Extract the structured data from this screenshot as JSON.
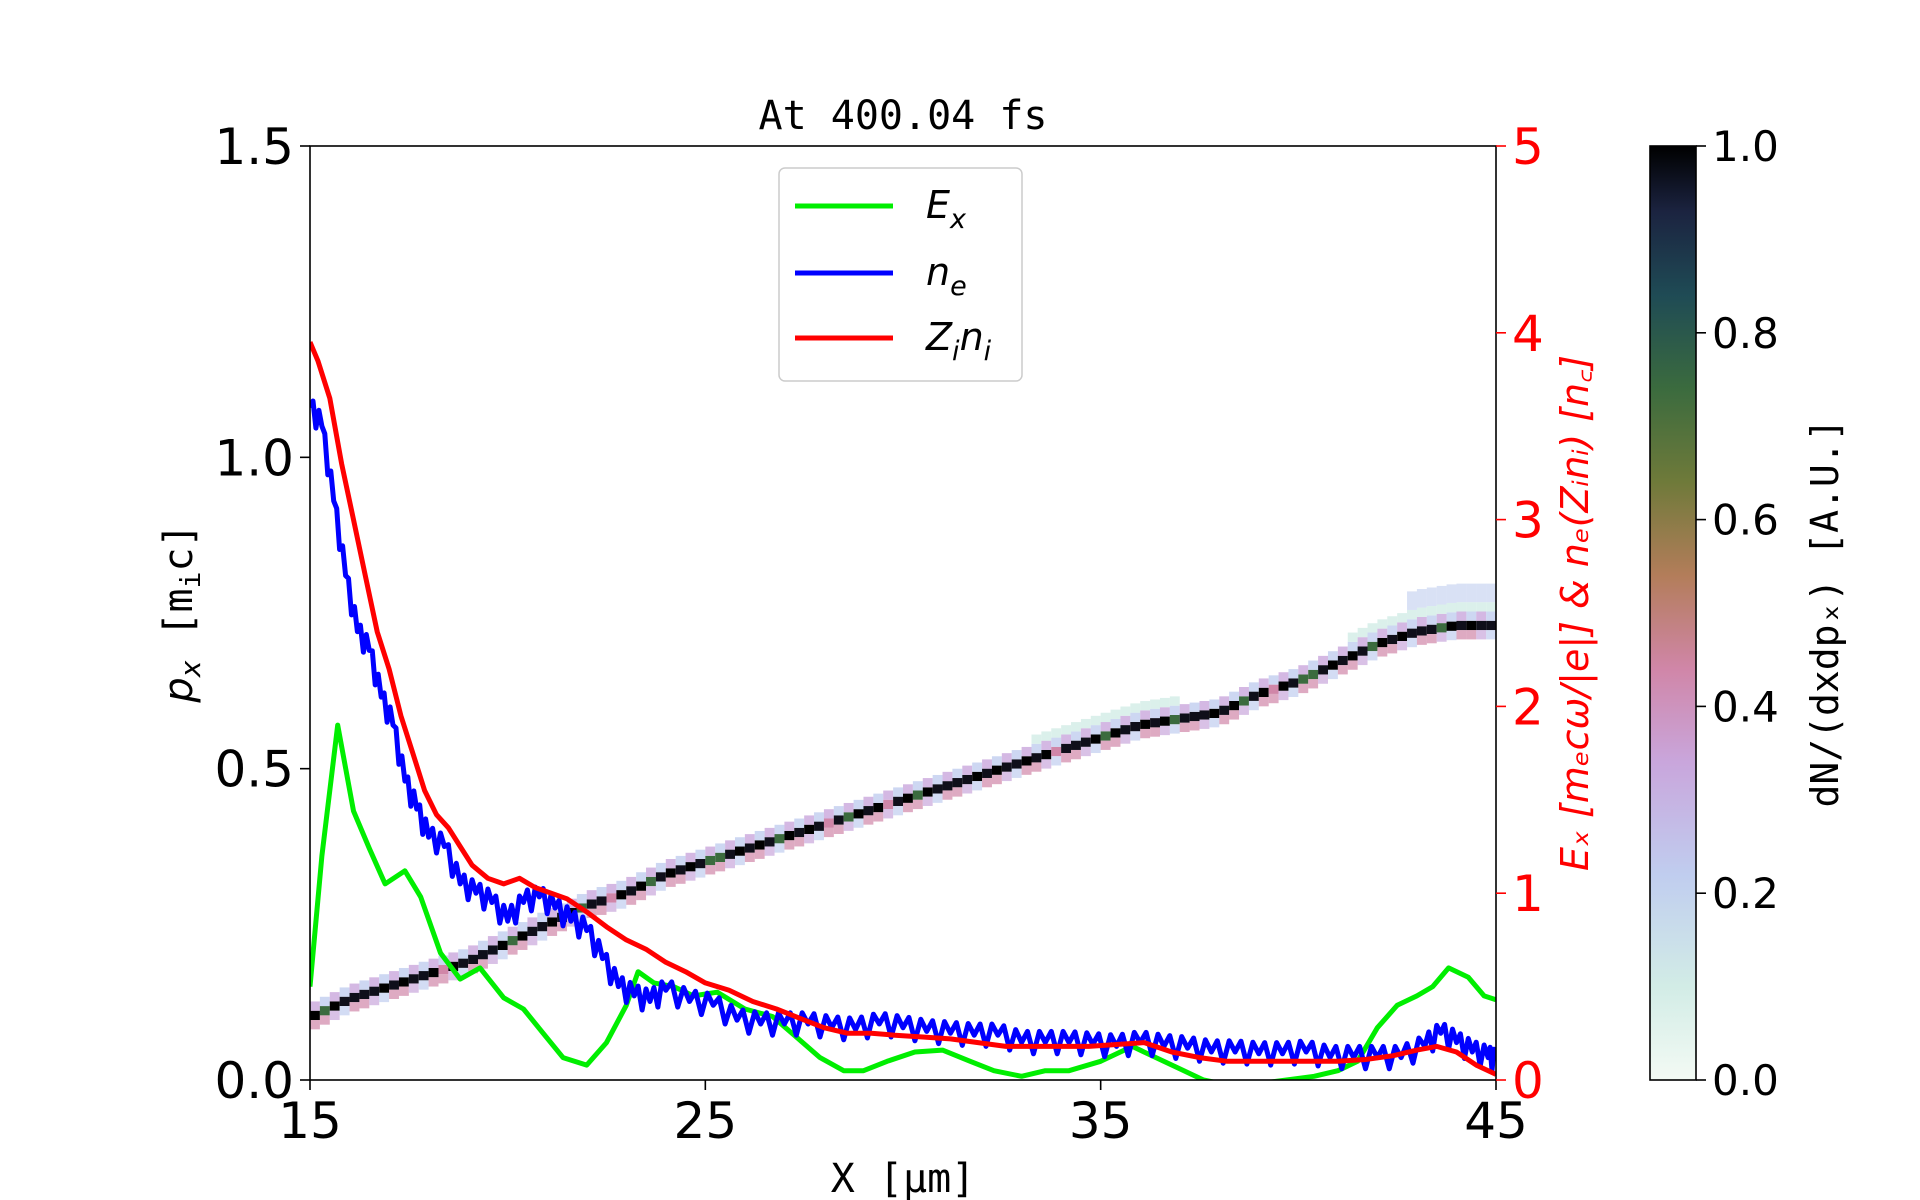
{
  "chart_data": {
    "type": "heatmap",
    "title": "At 400.04 fs",
    "xlabel": "X [μm]",
    "xlim": [
      15,
      45
    ],
    "x_ticks": [
      "15",
      "25",
      "35",
      "45"
    ],
    "x_tick_values": [
      15,
      25,
      35,
      45
    ],
    "ylabel_left": {
      "main": "p",
      "sub": "x",
      "unit": " [m",
      "unit_sub": "i",
      "unit_end": "c]"
    },
    "ylim_left": [
      0,
      1.5
    ],
    "y_ticks_left": [
      "0.0",
      "0.5",
      "1.0",
      "1.5"
    ],
    "y_tick_values_left": [
      0,
      0.5,
      1.0,
      1.5
    ],
    "ylabel_right": "Eₓ [mₑcω/|e|] & nₑ(Zᵢnᵢ) [n꜀]",
    "ylim_right": [
      0,
      5
    ],
    "y_ticks_right": [
      "0",
      "1",
      "2",
      "3",
      "4",
      "5"
    ],
    "y_tick_values_right": [
      0,
      1,
      2,
      3,
      4,
      5
    ],
    "right_axis_color": "#ff0000",
    "colorbar": {
      "label": "dN/(dxdpₓ) [A.U.]",
      "range": [
        0,
        1
      ],
      "ticks": [
        "0.0",
        "0.2",
        "0.4",
        "0.6",
        "0.8",
        "1.0"
      ],
      "tick_values": [
        0,
        0.2,
        0.4,
        0.6,
        0.8,
        1.0
      ],
      "colormap": "cubehelix_r"
    },
    "legend": {
      "placement": "upper-center",
      "entries": [
        {
          "label": "E",
          "sub": "x",
          "color": "#00ee00"
        },
        {
          "label": "n",
          "sub": "e",
          "color": "#0000ff"
        },
        {
          "label": "Z",
          "sub": "i",
          "label2": "n",
          "sub2": "i",
          "color": "#ff0000"
        }
      ]
    },
    "heatmap_ridge": {
      "description_values": "phase-space ridge of px vs X",
      "x": [
        15,
        16,
        17,
        18,
        19,
        20,
        21,
        22,
        23,
        24,
        25,
        26,
        27,
        28,
        29,
        30,
        31,
        32,
        33,
        34,
        35,
        36,
        37,
        38,
        39,
        40,
        41,
        42,
        43,
        44,
        45
      ],
      "px": [
        0.1,
        0.13,
        0.15,
        0.17,
        0.19,
        0.22,
        0.25,
        0.28,
        0.3,
        0.33,
        0.35,
        0.37,
        0.39,
        0.41,
        0.43,
        0.45,
        0.47,
        0.49,
        0.51,
        0.53,
        0.55,
        0.57,
        0.58,
        0.59,
        0.62,
        0.64,
        0.67,
        0.7,
        0.72,
        0.73,
        0.73
      ]
    },
    "series": [
      {
        "name": "Eₓ",
        "color": "#00ee00",
        "axis": "right",
        "x": [
          15.0,
          15.3,
          15.7,
          16.1,
          16.5,
          16.9,
          17.4,
          17.8,
          18.3,
          18.8,
          19.3,
          19.9,
          20.4,
          20.9,
          21.4,
          22.0,
          22.5,
          23.0,
          23.3,
          23.7,
          24.2,
          24.7,
          25.3,
          26.0,
          26.7,
          27.3,
          27.9,
          28.5,
          29.0,
          29.6,
          30.3,
          31.0,
          31.7,
          32.3,
          33.0,
          33.6,
          34.2,
          35.0,
          35.8,
          36.4,
          37.0,
          37.6,
          38.3,
          39.0,
          39.7,
          40.4,
          41.0,
          41.5,
          42.0,
          42.5,
          43.0,
          43.4,
          43.8,
          44.3,
          44.7,
          45.0
        ],
        "y": [
          0.5,
          1.2,
          1.9,
          1.44,
          1.24,
          1.05,
          1.12,
          0.98,
          0.68,
          0.54,
          0.6,
          0.44,
          0.38,
          0.25,
          0.12,
          0.08,
          0.2,
          0.4,
          0.58,
          0.52,
          0.5,
          0.45,
          0.47,
          0.38,
          0.34,
          0.23,
          0.12,
          0.05,
          0.05,
          0.1,
          0.15,
          0.16,
          0.1,
          0.05,
          0.02,
          0.05,
          0.05,
          0.1,
          0.18,
          0.12,
          0.06,
          0.0,
          -0.03,
          -0.02,
          0.0,
          0.02,
          0.05,
          0.1,
          0.28,
          0.4,
          0.45,
          0.5,
          0.6,
          0.55,
          0.45,
          0.43
        ]
      },
      {
        "name": "nₑ",
        "color": "#0000ff",
        "axis": "right",
        "x": [
          15.0,
          15.3,
          15.6,
          15.9,
          16.2,
          16.5,
          16.8,
          17.1,
          17.4,
          17.7,
          18.0,
          18.4,
          18.8,
          19.2,
          19.6,
          20.0,
          20.4,
          20.8,
          21.2,
          21.6,
          22.0,
          22.4,
          22.8,
          23.2,
          23.6,
          24.0,
          24.6,
          25.2,
          25.8,
          26.4,
          27.0,
          27.6,
          28.2,
          28.8,
          29.4,
          30.0,
          30.6,
          31.2,
          31.8,
          32.4,
          33.0,
          33.6,
          34.2,
          34.8,
          35.4,
          36.0,
          36.6,
          37.2,
          37.8,
          38.4,
          39.0,
          39.6,
          40.2,
          40.8,
          41.4,
          42.0,
          42.6,
          43.2,
          43.6,
          44.0,
          44.4,
          44.8,
          45.0
        ],
        "y": [
          3.6,
          3.5,
          3.1,
          2.7,
          2.4,
          2.3,
          2.05,
          1.9,
          1.6,
          1.45,
          1.3,
          1.25,
          1.05,
          1.0,
          0.95,
          0.85,
          0.95,
          0.98,
          0.92,
          0.85,
          0.8,
          0.65,
          0.5,
          0.45,
          0.42,
          0.48,
          0.42,
          0.4,
          0.32,
          0.3,
          0.3,
          0.3,
          0.28,
          0.27,
          0.3,
          0.28,
          0.26,
          0.25,
          0.24,
          0.24,
          0.2,
          0.2,
          0.2,
          0.19,
          0.18,
          0.2,
          0.18,
          0.17,
          0.15,
          0.15,
          0.14,
          0.14,
          0.15,
          0.12,
          0.12,
          0.12,
          0.12,
          0.18,
          0.25,
          0.2,
          0.15,
          0.12,
          0.1
        ]
      },
      {
        "name": "Zᵢnᵢ",
        "color": "#ff0000",
        "axis": "right",
        "x": [
          15.0,
          15.2,
          15.5,
          15.8,
          16.1,
          16.4,
          16.7,
          17.0,
          17.3,
          17.6,
          17.9,
          18.2,
          18.5,
          18.8,
          19.1,
          19.5,
          19.9,
          20.3,
          20.7,
          21.1,
          21.5,
          22.0,
          22.5,
          23.0,
          23.5,
          24.0,
          24.5,
          25.0,
          25.6,
          26.2,
          26.8,
          27.4,
          28.0,
          28.6,
          29.2,
          29.8,
          30.5,
          31.2,
          31.9,
          32.6,
          33.3,
          34.0,
          34.7,
          35.4,
          36.1,
          36.8,
          37.5,
          38.2,
          38.9,
          39.6,
          40.3,
          41.0,
          41.7,
          42.4,
          43.0,
          43.5,
          44.0,
          44.5,
          45.0
        ],
        "y": [
          3.95,
          3.85,
          3.65,
          3.3,
          3.0,
          2.7,
          2.4,
          2.2,
          1.95,
          1.75,
          1.55,
          1.42,
          1.35,
          1.25,
          1.15,
          1.08,
          1.05,
          1.08,
          1.03,
          1.0,
          0.97,
          0.9,
          0.82,
          0.75,
          0.7,
          0.63,
          0.58,
          0.52,
          0.48,
          0.42,
          0.38,
          0.33,
          0.28,
          0.25,
          0.25,
          0.24,
          0.23,
          0.22,
          0.2,
          0.18,
          0.18,
          0.18,
          0.18,
          0.19,
          0.2,
          0.15,
          0.12,
          0.1,
          0.1,
          0.1,
          0.1,
          0.1,
          0.11,
          0.13,
          0.16,
          0.18,
          0.15,
          0.08,
          0.03
        ]
      }
    ]
  }
}
